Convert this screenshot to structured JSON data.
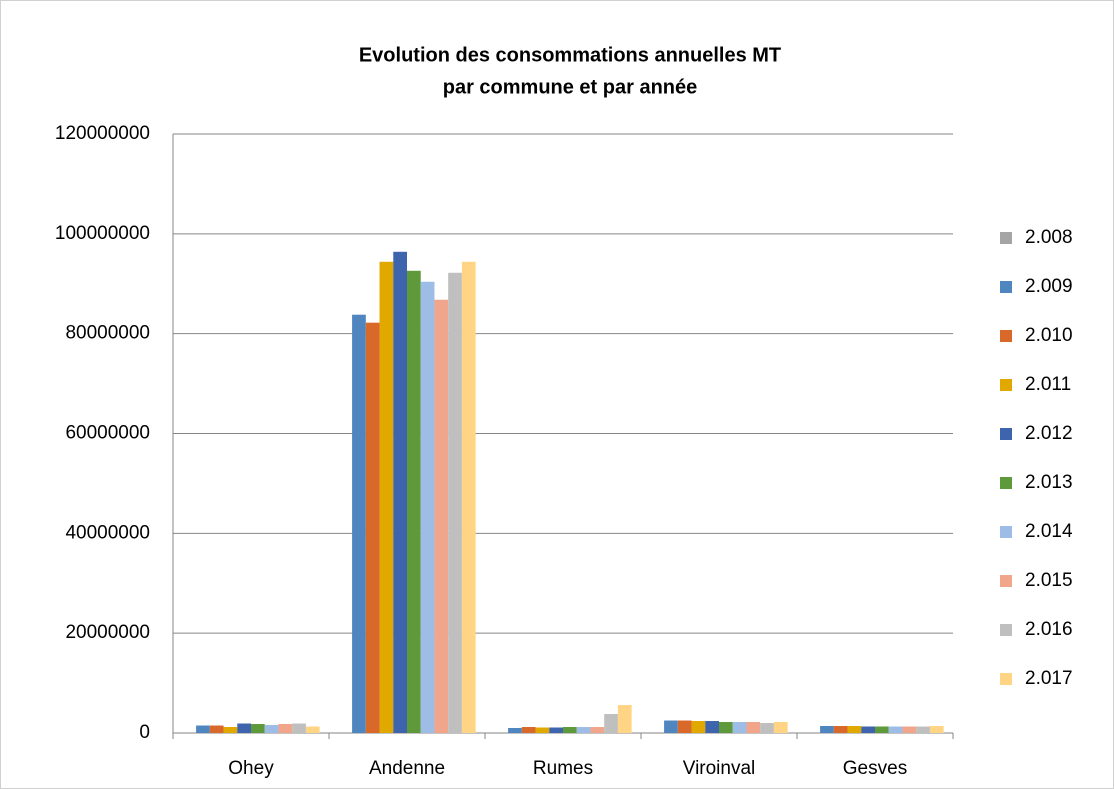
{
  "chart_data": {
    "type": "bar",
    "title": [
      "Evolution des consommations annuelles MT",
      "par commune et par année"
    ],
    "categories": [
      "Ohey",
      "Andenne",
      "Rumes",
      "Viroinval",
      "Gesves"
    ],
    "series": [
      {
        "name": "2.008",
        "color": "#a5a5a5",
        "values": [
          null,
          null,
          null,
          null,
          null
        ]
      },
      {
        "name": "2.009",
        "color": "#4f86c0",
        "values": [
          1500000,
          83800000,
          1000000,
          2500000,
          1400000
        ]
      },
      {
        "name": "2.010",
        "color": "#d9692a",
        "values": [
          1500000,
          82200000,
          1200000,
          2500000,
          1400000
        ]
      },
      {
        "name": "2.011",
        "color": "#e1a800",
        "values": [
          1200000,
          94400000,
          1100000,
          2400000,
          1400000
        ]
      },
      {
        "name": "2.012",
        "color": "#3d64ad",
        "values": [
          1900000,
          96400000,
          1100000,
          2400000,
          1300000
        ]
      },
      {
        "name": "2.013",
        "color": "#5e9a3b",
        "values": [
          1800000,
          92600000,
          1200000,
          2200000,
          1300000
        ]
      },
      {
        "name": "2.014",
        "color": "#9dbde6",
        "values": [
          1600000,
          90400000,
          1200000,
          2200000,
          1300000
        ]
      },
      {
        "name": "2.015",
        "color": "#f1a58b",
        "values": [
          1800000,
          86800000,
          1200000,
          2200000,
          1300000
        ]
      },
      {
        "name": "2.016",
        "color": "#bfbfbf",
        "values": [
          1900000,
          92200000,
          3800000,
          2000000,
          1300000
        ]
      },
      {
        "name": "2.017",
        "color": "#ffd485",
        "values": [
          1300000,
          94400000,
          5600000,
          2200000,
          1400000
        ]
      }
    ],
    "ylim": [
      0,
      120000000
    ],
    "yticks": [
      0,
      20000000,
      40000000,
      60000000,
      80000000,
      100000000,
      120000000
    ],
    "grid": true,
    "legend": "right"
  }
}
